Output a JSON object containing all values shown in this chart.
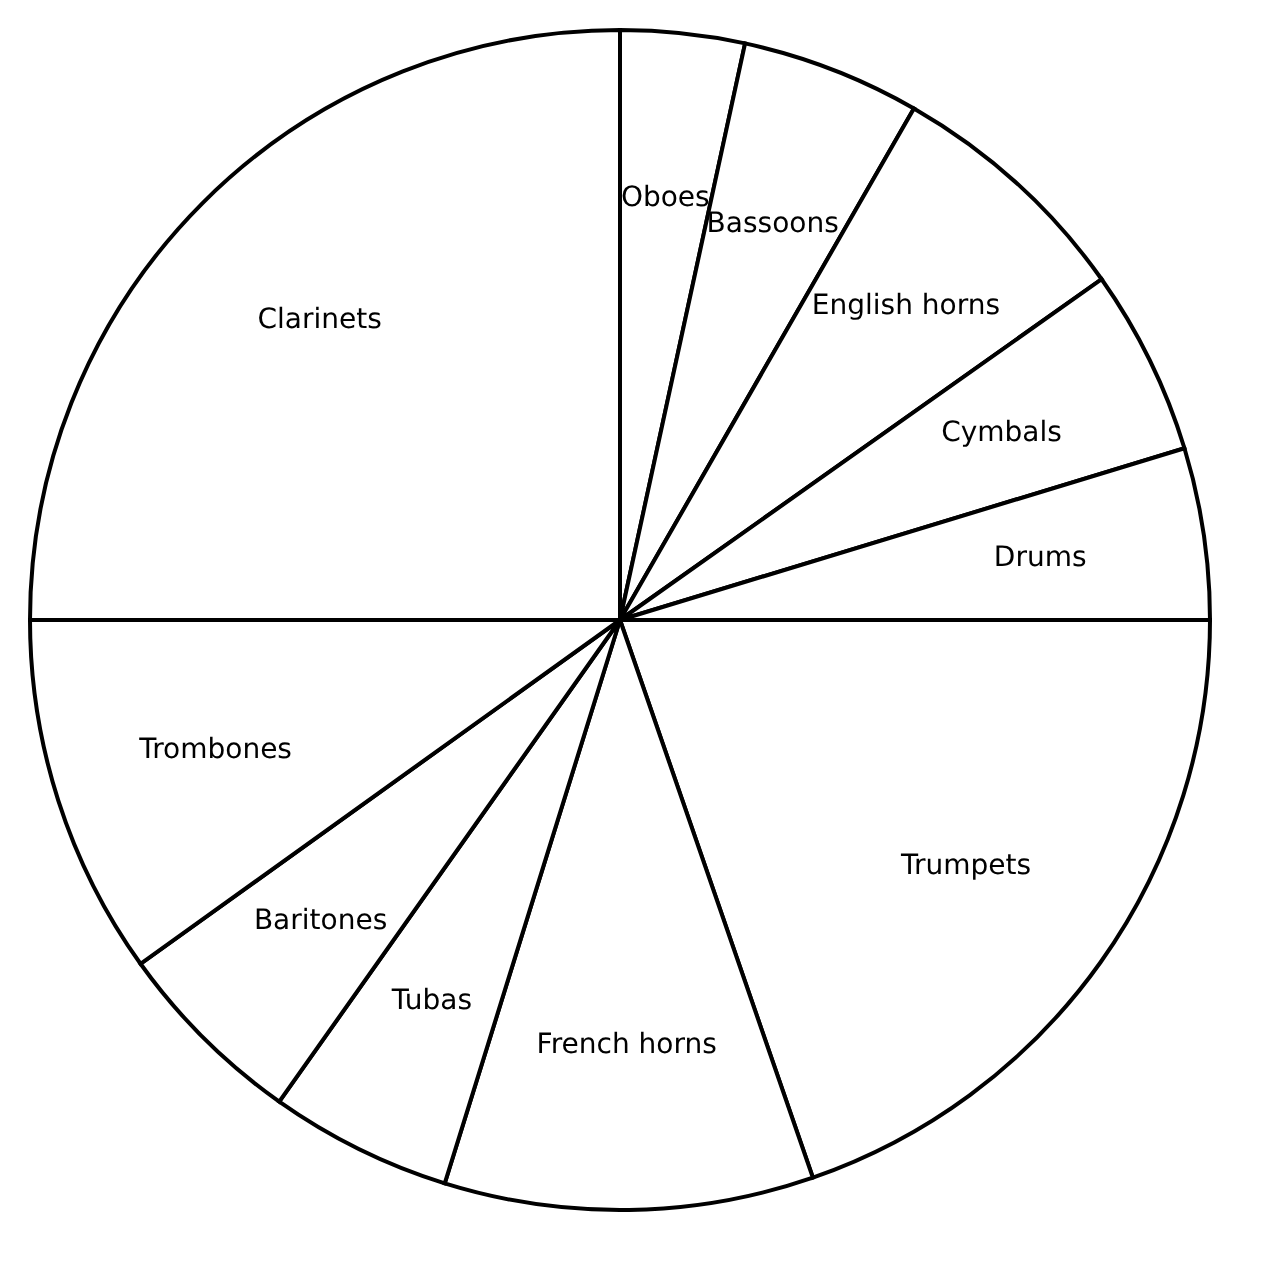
{
  "chart_data": {
    "type": "pie",
    "categories": [
      "Oboes",
      "Bassoons",
      "English horns",
      "Cymbals",
      "Drums",
      "Trumpets",
      "French horns",
      "Tubas",
      "Baritones",
      "Trombones",
      "Clarinets"
    ],
    "values": [
      3.4,
      4.9,
      6.9,
      5.1,
      4.7,
      19.7,
      10.1,
      5.0,
      5.3,
      9.9,
      25.0
    ],
    "colors": [
      "#ffffff",
      "#ffffff",
      "#ffffff",
      "#ffffff",
      "#ffffff",
      "#ffffff",
      "#ffffff",
      "#ffffff",
      "#ffffff",
      "#ffffff",
      "#ffffff"
    ]
  }
}
